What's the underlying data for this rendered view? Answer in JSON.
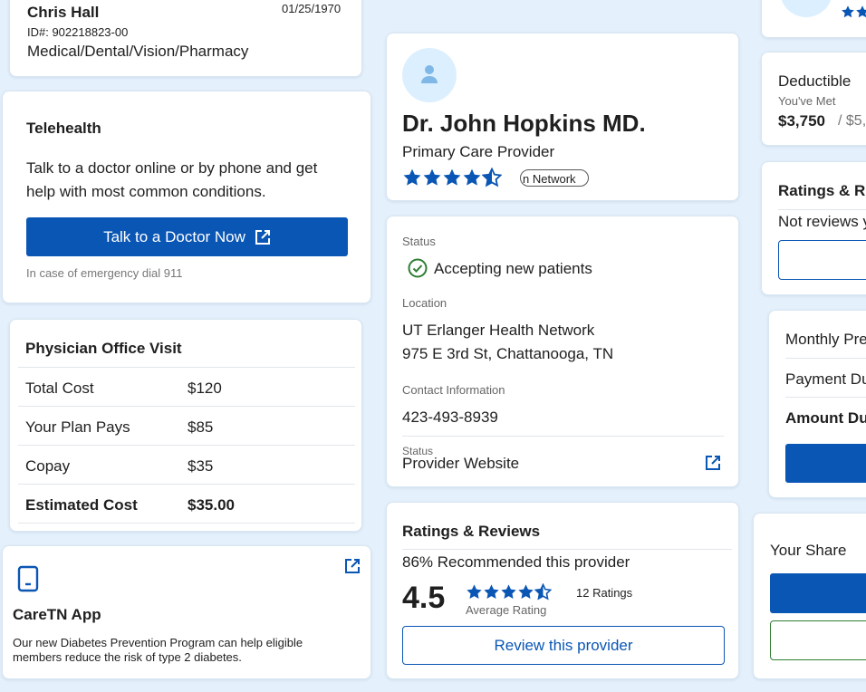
{
  "member": {
    "name": "Chris Hall",
    "dob": "01/25/1970",
    "id_text": "ID#: 902218823-00",
    "coverage": "Medical/Dental/Vision/Pharmacy"
  },
  "telehealth": {
    "title": "Telehealth",
    "desc_line1": "Talk to a doctor online or by phone and get",
    "desc_line2": "help with most common conditions.",
    "button_label": "Talk to a Doctor Now",
    "emergency_note": "In case of emergency dial 911"
  },
  "office_visit": {
    "title": "Physician Office Visit",
    "rows": [
      {
        "label": "Total Cost",
        "value": "$120"
      },
      {
        "label": "Your Plan Pays",
        "value": "$85"
      },
      {
        "label": "Copay",
        "value": "$35"
      },
      {
        "label": "Estimated Cost",
        "value": "$35.00"
      }
    ]
  },
  "app": {
    "title": "CareTN App",
    "desc_line1": "Our new Diabetes Prevention Program can help eligible",
    "desc_line2": "members reduce the risk of type 2 diabetes."
  },
  "provider": {
    "name": "Dr. John Hopkins MD.",
    "role": "Primary Care Provider",
    "rating_stars": 4.5,
    "network_badge": "n Network"
  },
  "details": {
    "status_label": "Status",
    "status_value": "Accepting new patients",
    "location_label": "Location",
    "location_line1": "UT Erlanger Health Network",
    "location_line2": "975 E 3rd St, Chattanooga, TN",
    "contact_label": "Contact Information",
    "phone": "423-493-8939",
    "website_label": "Status",
    "website_value": "Provider Website"
  },
  "reviews": {
    "title": "Ratings & Reviews",
    "recommended": "86% Recommended this provider",
    "average": "4.5",
    "average_label": "Average Rating",
    "count": "12 Ratings",
    "review_button": "Review this provider"
  },
  "right": {
    "deductible_title": "Deductible",
    "deductible_met_label": "You've Met",
    "deductible_met": "$3,750",
    "deductible_total": "/ $5,",
    "ratings_title": "Ratings & Re",
    "ratings_text": "Not reviews y",
    "monthly_premium": "Monthly Pre",
    "payment_due": "Payment Du",
    "amount_due": "Amount Du",
    "your_share": "Your Share"
  },
  "colors": {
    "accent": "#0a56b4",
    "success": "#2e7d32",
    "background": "#e4f0fb"
  }
}
